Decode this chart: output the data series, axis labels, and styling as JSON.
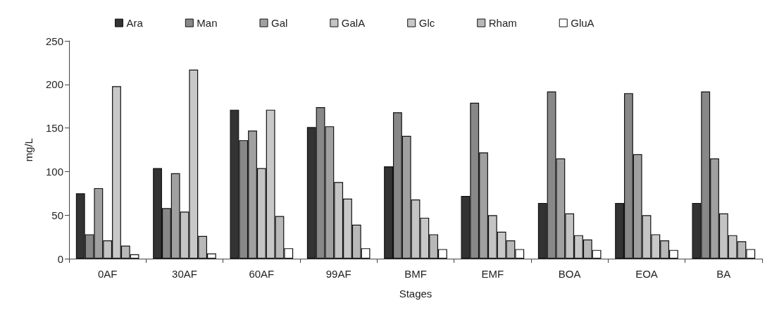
{
  "chart_data": {
    "type": "bar",
    "xlabel": "Stages",
    "ylabel": "mg/L",
    "categories": [
      "0AF",
      "30AF",
      "60AF",
      "99AF",
      "BMF",
      "EMF",
      "BOA",
      "EOA",
      "BA"
    ],
    "series": [
      {
        "name": "Ara",
        "color": "#333333",
        "values": [
          75,
          104,
          171,
          151,
          106,
          72,
          64,
          64,
          64
        ]
      },
      {
        "name": "Man",
        "color": "#888888",
        "values": [
          28,
          58,
          136,
          174,
          168,
          179,
          192,
          190,
          192
        ]
      },
      {
        "name": "Gal",
        "color": "#a0a0a0",
        "values": [
          81,
          98,
          147,
          152,
          141,
          122,
          115,
          120,
          115
        ]
      },
      {
        "name": "GalA",
        "color": "#c4c4c4",
        "values": [
          21,
          54,
          104,
          88,
          68,
          50,
          52,
          50,
          52
        ]
      },
      {
        "name": "Glc",
        "color": "#c8c8c8",
        "values": [
          198,
          217,
          171,
          69,
          47,
          31,
          27,
          28,
          27
        ]
      },
      {
        "name": "Rham",
        "color": "#b8b8b8",
        "values": [
          15,
          26,
          49,
          39,
          28,
          21,
          22,
          21,
          20
        ]
      },
      {
        "name": "GluA",
        "color": "#ffffff",
        "values": [
          5,
          6,
          12,
          12,
          11,
          11,
          10,
          10,
          11
        ]
      }
    ],
    "ylim": [
      0,
      250
    ],
    "yticks": [
      0,
      50,
      100,
      150,
      200,
      250
    ],
    "grid": false,
    "legend": "top"
  }
}
